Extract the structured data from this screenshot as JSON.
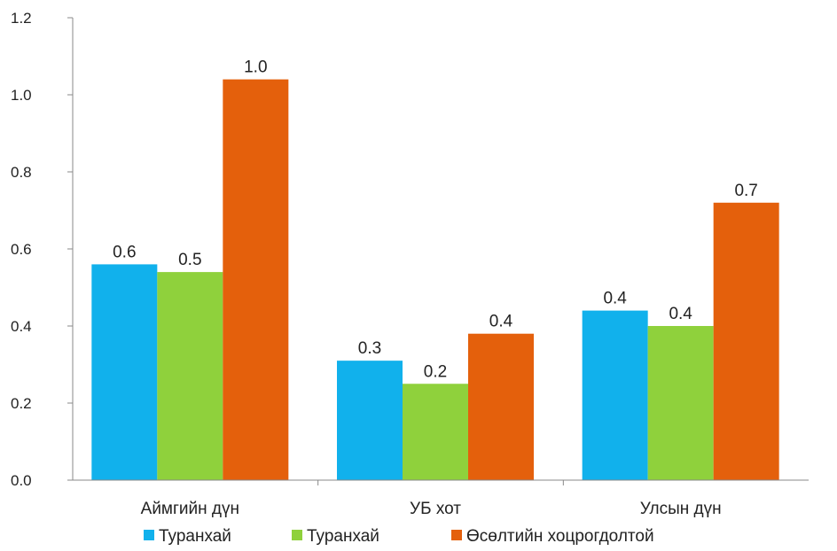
{
  "chart_data": {
    "type": "bar",
    "title": "",
    "xlabel": "",
    "ylabel": "",
    "ylim": [
      0,
      1.2
    ],
    "yticks": [
      "0.0",
      "0.2",
      "0.4",
      "0.6",
      "0.8",
      "1.0",
      "1.2"
    ],
    "grid": false,
    "legend_position": "bottom",
    "categories": [
      "Аймгийн дүн",
      "УБ хот",
      "Улсын дүн"
    ],
    "series": [
      {
        "name": "Туранхай",
        "color": "#11b1ec",
        "values": [
          0.56,
          0.31,
          0.44
        ],
        "labels": [
          "0.6",
          "0.3",
          "0.4"
        ]
      },
      {
        "name": "Туранхай",
        "color": "#8fd13c",
        "values": [
          0.54,
          0.25,
          0.4
        ],
        "labels": [
          "0.5",
          "0.2",
          "0.4"
        ]
      },
      {
        "name": "Өсөлтийн хоцрогдолтой",
        "color": "#e4600c",
        "values": [
          1.04,
          0.38,
          0.72
        ],
        "labels": [
          "1.0",
          "0.4",
          "0.7"
        ]
      }
    ]
  }
}
